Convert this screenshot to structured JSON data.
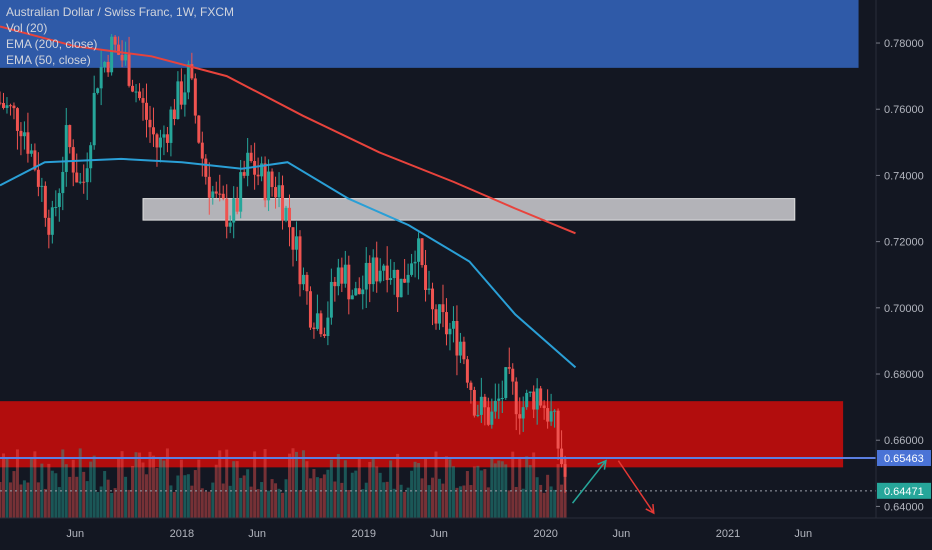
{
  "legend": {
    "title": "Australian Dollar / Swiss Franc, 1W, FXCM",
    "vol": "Vol (20)",
    "ema200": "EMA (200, close)",
    "ema50": "EMA (50, close)"
  },
  "colors": {
    "background": "#131722",
    "up_candle": "#26a69a",
    "down_candle": "#ef5350",
    "ema200": "#e8433c",
    "ema50": "#2a9fd6",
    "resistance_zone": "#2f5aa8",
    "support_zone": "#b20d0d",
    "gray_zone": "#b3b3b8",
    "horizontal_line": "#5b7ee0",
    "price_tag_current": "#26a69a",
    "price_tag_line": "#4a73d6",
    "arrow_up": "#26a69a",
    "arrow_down": "#e53935"
  },
  "chart_data": {
    "type": "candlestick",
    "symbol": "AUDCHF",
    "timeframe": "1W",
    "y_axis": {
      "ticks": [
        "0.78000",
        "0.76000",
        "0.74000",
        "0.72000",
        "0.70000",
        "0.68000",
        "0.66000",
        "0.64000"
      ],
      "ylim": [
        0.6365,
        0.793
      ]
    },
    "x_axis": {
      "ticks": [
        "Jun",
        "2018",
        "Jun",
        "2019",
        "Jun",
        "2020",
        "Jun",
        "2021",
        "Jun"
      ],
      "tick_dates": [
        "2017-06-01",
        "2018-01-01",
        "2018-06-01",
        "2019-01-01",
        "2019-06-01",
        "2020-01-01",
        "2020-06-01",
        "2021-01-01",
        "2021-06-01"
      ],
      "xlim": [
        "2017-01-01",
        "2021-10-25"
      ]
    },
    "price_labels": {
      "horizontal_line": "0.65463",
      "last_price": "0.64471"
    },
    "horizontal_line_value": 0.65463,
    "zones": [
      {
        "name": "resistance",
        "y_low": 0.7725,
        "y_high": 0.793,
        "x_start": "2017-01-01",
        "x_end": "2021-09-20"
      },
      {
        "name": "support",
        "y_low": 0.6518,
        "y_high": 0.6718,
        "x_start": "2017-01-01",
        "x_end": "2021-08-20"
      },
      {
        "name": "gray",
        "y_low": 0.7265,
        "y_high": 0.733,
        "x_start": "2017-10-15",
        "x_end": "2021-05-15"
      }
    ],
    "arrows": [
      {
        "type": "up",
        "from": [
          "2020-02-24",
          0.641
        ],
        "to": [
          "2020-05-01",
          0.6538
        ]
      },
      {
        "type": "down",
        "from": [
          "2020-05-26",
          0.6538
        ],
        "to": [
          "2020-08-05",
          0.638
        ]
      }
    ],
    "ema200": [
      [
        "2017-01-01",
        0.785
      ],
      [
        "2017-06-01",
        0.779
      ],
      [
        "2017-11-01",
        0.776
      ],
      [
        "2018-04-01",
        0.77
      ],
      [
        "2018-09-01",
        0.758
      ],
      [
        "2019-02-01",
        0.747
      ],
      [
        "2019-07-01",
        0.738
      ],
      [
        "2019-11-01",
        0.73
      ],
      [
        "2020-03-01",
        0.7225
      ]
    ],
    "ema50": [
      [
        "2017-01-01",
        0.737
      ],
      [
        "2017-04-01",
        0.744
      ],
      [
        "2017-09-01",
        0.745
      ],
      [
        "2018-01-01",
        0.744
      ],
      [
        "2018-05-01",
        0.742
      ],
      [
        "2018-08-01",
        0.744
      ],
      [
        "2018-12-01",
        0.733
      ],
      [
        "2019-04-01",
        0.725
      ],
      [
        "2019-08-01",
        0.714
      ],
      [
        "2019-11-01",
        0.698
      ],
      [
        "2020-03-01",
        0.682
      ]
    ],
    "candles_close": [
      [
        "2017-01-01",
        0.762
      ],
      [
        "2017-02-15",
        0.756
      ],
      [
        "2017-03-15",
        0.742
      ],
      [
        "2017-04-15",
        0.724
      ],
      [
        "2017-05-15",
        0.751
      ],
      [
        "2017-06-15",
        0.735
      ],
      [
        "2017-07-15",
        0.77
      ],
      [
        "2017-08-15",
        0.779
      ],
      [
        "2017-09-15",
        0.773
      ],
      [
        "2017-10-15",
        0.76
      ],
      [
        "2017-11-15",
        0.748
      ],
      [
        "2017-12-15",
        0.76
      ],
      [
        "2018-01-15",
        0.77
      ],
      [
        "2018-02-15",
        0.742
      ],
      [
        "2018-03-15",
        0.73
      ],
      [
        "2018-04-15",
        0.728
      ],
      [
        "2018-05-15",
        0.744
      ],
      [
        "2018-06-15",
        0.738
      ],
      [
        "2018-07-15",
        0.736
      ],
      [
        "2018-08-15",
        0.72
      ],
      [
        "2018-09-15",
        0.7
      ],
      [
        "2018-10-15",
        0.696
      ],
      [
        "2018-11-15",
        0.713
      ],
      [
        "2018-12-15",
        0.703
      ],
      [
        "2019-01-15",
        0.71
      ],
      [
        "2019-02-15",
        0.715
      ],
      [
        "2019-03-15",
        0.706
      ],
      [
        "2019-04-15",
        0.72
      ],
      [
        "2019-05-15",
        0.698
      ],
      [
        "2019-06-15",
        0.694
      ],
      [
        "2019-07-15",
        0.69
      ],
      [
        "2019-08-15",
        0.67
      ],
      [
        "2019-09-15",
        0.667
      ],
      [
        "2019-10-15",
        0.677
      ],
      [
        "2019-11-15",
        0.67
      ],
      [
        "2019-12-15",
        0.675
      ],
      [
        "2020-01-15",
        0.666
      ],
      [
        "2020-02-15",
        0.6447
      ]
    ],
    "volume_note": "volume histogram at bottom"
  }
}
